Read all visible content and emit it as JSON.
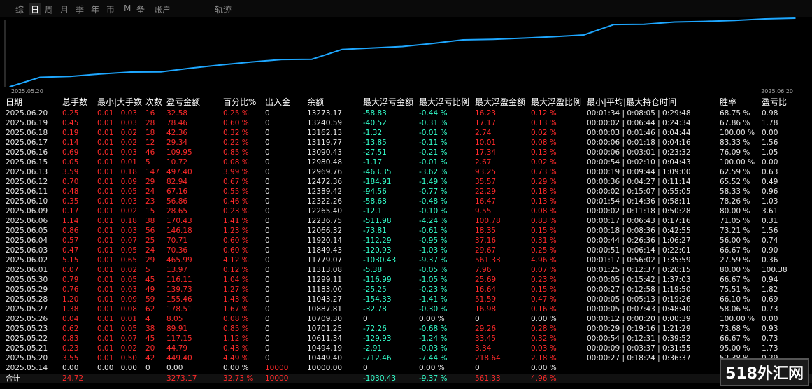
{
  "tabs": [
    "综",
    "日",
    "周",
    "月",
    "季",
    "年",
    "币",
    "M",
    "备",
    "账户",
    "轨迹"
  ],
  "active_tab": 1,
  "chart_data": {
    "type": "line",
    "x_start_label": "2025.05.20",
    "x_end_label": "2025.06.20",
    "x": [
      "2025.05.14",
      "2025.05.20",
      "2025.05.21",
      "2025.05.22",
      "2025.05.23",
      "2025.05.26",
      "2025.05.27",
      "2025.05.28",
      "2025.05.29",
      "2025.05.30",
      "2025.06.01",
      "2025.06.02",
      "2025.06.03",
      "2025.06.04",
      "2025.06.05",
      "2025.06.06",
      "2025.06.09",
      "2025.06.10",
      "2025.06.11",
      "2025.06.12",
      "2025.06.13",
      "2025.06.15",
      "2025.06.16",
      "2025.06.17",
      "2025.06.18",
      "2025.06.19",
      "2025.06.20"
    ],
    "series": [
      {
        "values": [
          10000,
          10449.4,
          10494.19,
          10611.34,
          10701.25,
          10709.3,
          10887.81,
          11043.27,
          11183.0,
          11299.11,
          11313.08,
          11779.07,
          11849.43,
          11920.14,
          12066.32,
          12236.75,
          12265.4,
          12322.26,
          12389.42,
          12472.36,
          12969.76,
          12980.48,
          13090.43,
          13119.77,
          13162.13,
          13240.59,
          13273.17
        ],
        "color": "#1ea7ff"
      }
    ]
  },
  "columns": [
    "日期",
    "总手数",
    "最小|大手数",
    "次数",
    "盈亏金额",
    "百分比%",
    "出入金",
    "余额",
    "最大浮亏金额",
    "最大浮亏比例",
    "最大浮盈金额",
    "最大浮盈比例",
    "最小|平均|最大持仓时间",
    "胜率",
    "盈亏比"
  ],
  "rows": [
    [
      "2025.06.20",
      "0.25",
      "0.01 | 0.03",
      "16",
      "32.58",
      "0.25 %",
      "0",
      "13273.17",
      "-58.83",
      "-0.44 %",
      "16.23",
      "0.12 %",
      "00:01:34 | 0:08:05 | 0:29:48",
      "68.75 %",
      "0.98"
    ],
    [
      "2025.06.19",
      "0.45",
      "0.01 | 0.03",
      "28",
      "78.46",
      "0.60 %",
      "0",
      "13240.59",
      "-40.52",
      "-0.31 %",
      "17.17",
      "0.13 %",
      "00:00:02 | 0:06:44 | 0:24:34",
      "67.86 %",
      "1.78"
    ],
    [
      "2025.06.18",
      "0.19",
      "0.01 | 0.02",
      "18",
      "42.36",
      "0.32 %",
      "0",
      "13162.13",
      "-1.32",
      "-0.01 %",
      "2.74",
      "0.02 %",
      "00:00:03 | 0:01:46 | 0:04:44",
      "100.00 %",
      "0.00"
    ],
    [
      "2025.06.17",
      "0.14",
      "0.01 | 0.02",
      "12",
      "29.34",
      "0.22 %",
      "0",
      "13119.77",
      "-13.85",
      "-0.11 %",
      "10.01",
      "0.08 %",
      "00:00:06 | 0:01:18 | 0:04:16",
      "83.33 %",
      "1.56"
    ],
    [
      "2025.06.16",
      "0.69",
      "0.01 | 0.03",
      "46",
      "109.95",
      "0.85 %",
      "0",
      "13090.43",
      "-27.51",
      "-0.21 %",
      "17.34",
      "0.13 %",
      "00:00:06 | 0:03:01 | 0:23:32",
      "76.09 %",
      "1.05"
    ],
    [
      "2025.06.15",
      "0.05",
      "0.01 | 0.01",
      "5",
      "10.72",
      "0.08 %",
      "0",
      "12980.48",
      "-1.17",
      "-0.01 %",
      "2.67",
      "0.02 %",
      "00:00:54 | 0:02:10 | 0:04:43",
      "100.00 %",
      "0.00"
    ],
    [
      "2025.06.13",
      "3.59",
      "0.01 | 0.18",
      "147",
      "497.40",
      "3.99 %",
      "0",
      "12969.76",
      "-463.35",
      "-3.62 %",
      "93.25",
      "0.73 %",
      "00:00:19 | 0:09:44 | 1:09:00",
      "62.59 %",
      "0.63"
    ],
    [
      "2025.06.12",
      "0.70",
      "0.01 | 0.09",
      "29",
      "82.94",
      "0.67 %",
      "0",
      "12472.36",
      "-184.91",
      "-1.49 %",
      "35.57",
      "0.29 %",
      "00:00:36 | 0:04:27 | 0:11:14",
      "65.52 %",
      "0.49"
    ],
    [
      "2025.06.11",
      "0.48",
      "0.01 | 0.05",
      "24",
      "67.16",
      "0.55 %",
      "0",
      "12389.42",
      "-94.56",
      "-0.77 %",
      "22.29",
      "0.18 %",
      "00:00:02 | 0:15:07 | 0:55:05",
      "58.33 %",
      "0.96"
    ],
    [
      "2025.06.10",
      "0.35",
      "0.01 | 0.03",
      "23",
      "56.86",
      "0.46 %",
      "0",
      "12322.26",
      "-58.68",
      "-0.48 %",
      "16.47",
      "0.13 %",
      "00:01:54 | 0:14:36 | 0:58:11",
      "78.26 %",
      "1.03"
    ],
    [
      "2025.06.09",
      "0.17",
      "0.01 | 0.02",
      "15",
      "28.65",
      "0.23 %",
      "0",
      "12265.40",
      "-12.1",
      "-0.10 %",
      "9.55",
      "0.08 %",
      "00:00:02 | 0:11:18 | 0:50:28",
      "80.00 %",
      "3.61"
    ],
    [
      "2025.06.06",
      "1.14",
      "0.01 | 0.18",
      "38",
      "170.43",
      "1.41 %",
      "0",
      "12236.75",
      "-511.98",
      "-4.24 %",
      "100.78",
      "0.83 %",
      "00:00:17 | 0:06:43 | 0:17:16",
      "71.05 %",
      "0.31"
    ],
    [
      "2025.06.05",
      "0.86",
      "0.01 | 0.03",
      "56",
      "146.18",
      "1.23 %",
      "0",
      "12066.32",
      "-73.81",
      "-0.61 %",
      "18.35",
      "0.15 %",
      "00:00:18 | 0:08:36 | 0:42:55",
      "73.21 %",
      "1.56"
    ],
    [
      "2025.06.04",
      "0.57",
      "0.01 | 0.07",
      "25",
      "70.71",
      "0.60 %",
      "0",
      "11920.14",
      "-112.29",
      "-0.95 %",
      "37.16",
      "0.31 %",
      "00:00:44 | 0:26:36 | 1:06:27",
      "56.00 %",
      "0.74"
    ],
    [
      "2025.06.03",
      "0.47",
      "0.01 | 0.05",
      "24",
      "70.36",
      "0.60 %",
      "0",
      "11849.43",
      "-120.93",
      "-1.03 %",
      "29.67",
      "0.25 %",
      "00:00:51 | 0:06:14 | 0:22:01",
      "66.67 %",
      "0.90"
    ],
    [
      "2025.06.02",
      "5.15",
      "0.01 | 0.65",
      "29",
      "465.99",
      "4.12 %",
      "0",
      "11779.07",
      "-1030.43",
      "-9.37 %",
      "561.33",
      "4.96 %",
      "00:01:17 | 0:56:02 | 1:35:59",
      "27.59 %",
      "0.36"
    ],
    [
      "2025.06.01",
      "0.07",
      "0.01 | 0.02",
      "5",
      "13.97",
      "0.12 %",
      "0",
      "11313.08",
      "-5.38",
      "-0.05 %",
      "7.96",
      "0.07 %",
      "00:01:25 | 0:12:37 | 0:20:15",
      "80.00 %",
      "100.38"
    ],
    [
      "2025.05.30",
      "0.79",
      "0.01 | 0.05",
      "45",
      "116.11",
      "1.04 %",
      "0",
      "11299.11",
      "-116.99",
      "-1.05 %",
      "25.69",
      "0.23 %",
      "00:00:05 | 0:15:42 | 1:37:03",
      "66.67 %",
      "0.94"
    ],
    [
      "2025.05.29",
      "0.76",
      "0.01 | 0.03",
      "49",
      "139.73",
      "1.27 %",
      "0",
      "11183.00",
      "-25.25",
      "-0.23 %",
      "16.64",
      "0.15 %",
      "00:00:27 | 0:12:58 | 1:19:50",
      "75.51 %",
      "1.82"
    ],
    [
      "2025.05.28",
      "1.20",
      "0.01 | 0.09",
      "59",
      "155.46",
      "1.43 %",
      "0",
      "11043.27",
      "-154.33",
      "-1.41 %",
      "51.59",
      "0.47 %",
      "00:00:05 | 0:05:13 | 0:19:26",
      "66.10 %",
      "0.69"
    ],
    [
      "2025.05.27",
      "1.38",
      "0.01 | 0.08",
      "62",
      "178.51",
      "1.67 %",
      "0",
      "10887.81",
      "-32.78",
      "-0.30 %",
      "16.98",
      "0.16 %",
      "00:00:05 | 0:07:43 | 0:48:40",
      "58.06 %",
      "0.73"
    ],
    [
      "2025.05.26",
      "0.04",
      "0.01 | 0.01",
      "4",
      "8.05",
      "0.08 %",
      "0",
      "10709.30",
      "0",
      "0.00 %",
      "0",
      "0.00 %",
      "00:00:12 | 0:00:20 | 0:00:39",
      "100.00 %",
      "0.00"
    ],
    [
      "2025.05.23",
      "0.62",
      "0.01 | 0.05",
      "38",
      "89.91",
      "0.85 %",
      "0",
      "10701.25",
      "-72.26",
      "-0.68 %",
      "29.26",
      "0.28 %",
      "00:00:29 | 0:19:16 | 1:21:29",
      "73.68 %",
      "0.93"
    ],
    [
      "2025.05.22",
      "0.83",
      "0.01 | 0.07",
      "45",
      "117.15",
      "1.12 %",
      "0",
      "10611.34",
      "-129.93",
      "-1.24 %",
      "33.45",
      "0.32 %",
      "00:00:54 | 0:12:31 | 0:39:52",
      "66.67 %",
      "0.73"
    ],
    [
      "2025.05.21",
      "0.23",
      "0.01 | 0.02",
      "20",
      "44.79",
      "0.43 %",
      "0",
      "10494.19",
      "-2.91",
      "-0.03 %",
      "3.34",
      "0.03 %",
      "00:00:09 | 0:03:37 | 0:31:55",
      "95.00 %",
      "1.73"
    ],
    [
      "2025.05.20",
      "3.55",
      "0.01 | 0.50",
      "42",
      "449.40",
      "4.49 %",
      "0",
      "10449.40",
      "-712.46",
      "-7.44 %",
      "218.64",
      "2.18 %",
      "00:00:27 | 0:18:24 | 0:36:37",
      "52.38 %",
      "0.29"
    ],
    [
      "2025.05.14",
      "0.00",
      "0.00 | 0.00",
      "0",
      "0.00",
      "0.00 %",
      "10000",
      "10000.00",
      "0",
      "0.00 %",
      "0",
      "0.00 %",
      "",
      "",
      ""
    ]
  ],
  "total": [
    "合计",
    "24.72",
    "",
    "",
    "3273.17",
    "32.73 %",
    "10000",
    "",
    "-1030.43",
    "-9.37 %",
    "561.33",
    "4.96 %",
    "",
    "",
    ""
  ],
  "watermark": "518外汇网"
}
